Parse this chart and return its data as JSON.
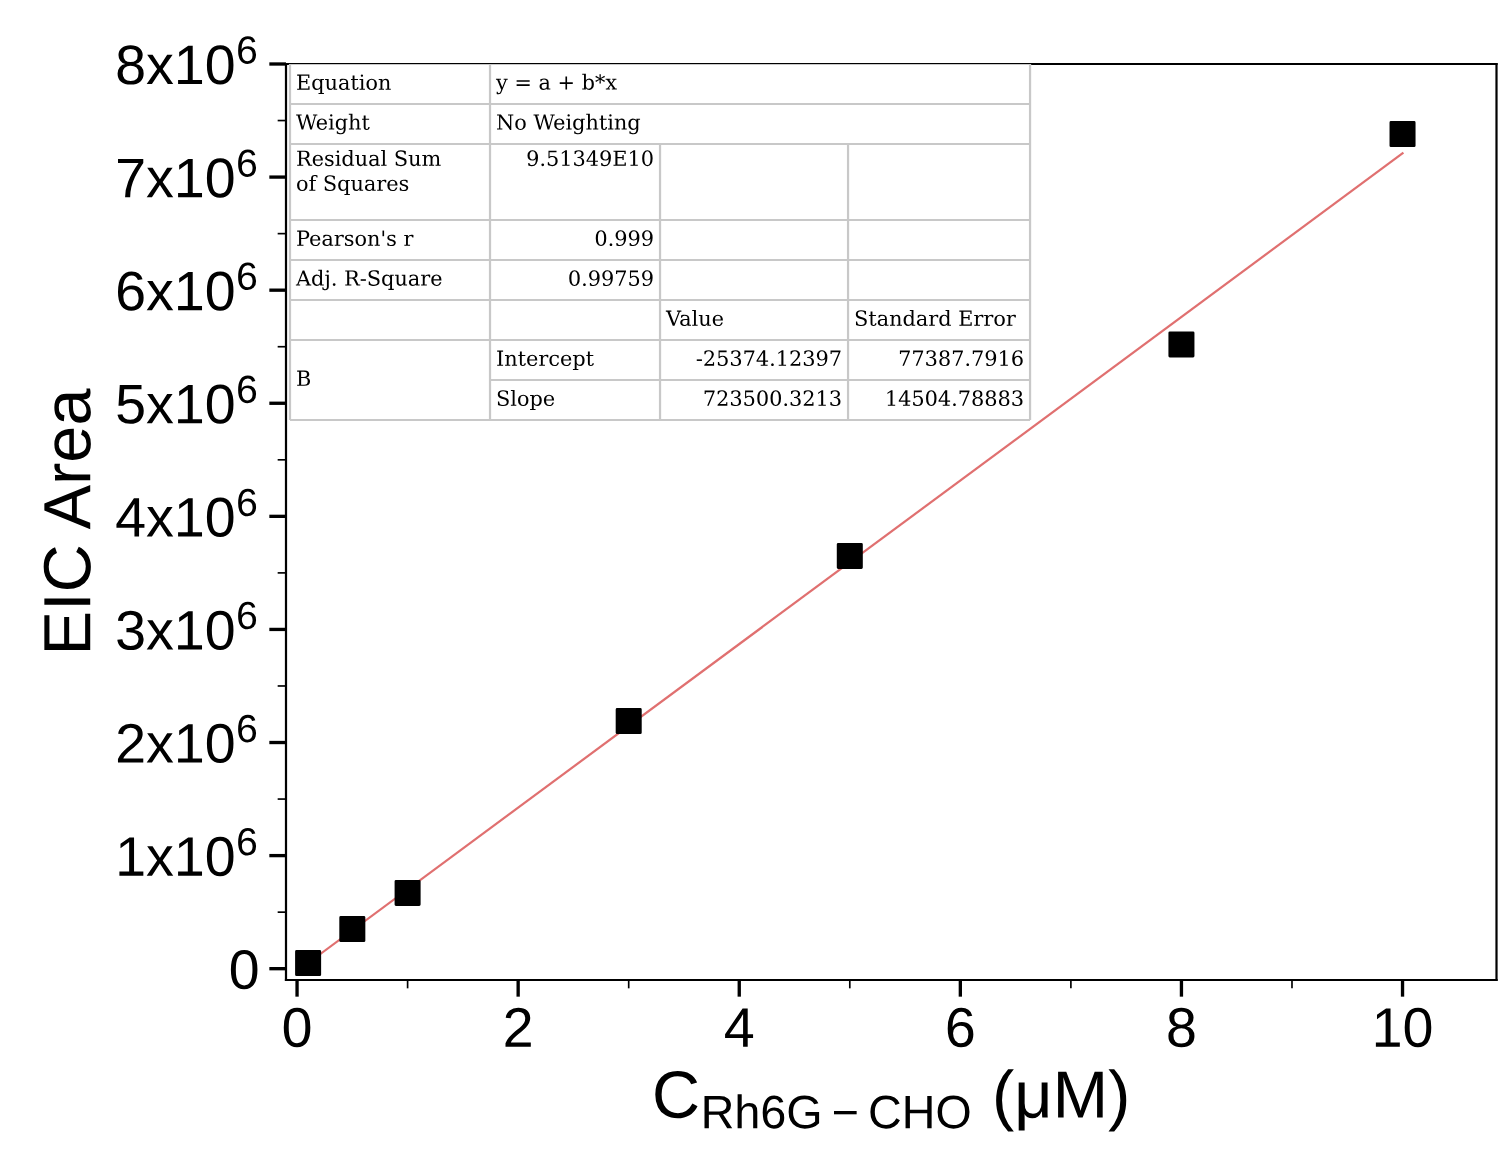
{
  "chart_data": {
    "type": "scatter",
    "xlabel": "C$_{Rh6G−CHO}$ (μM)",
    "ylabel": "EIC Area",
    "x": [
      0.1,
      0.5,
      1,
      3,
      5,
      8,
      10
    ],
    "series": [
      {
        "color": "#000000",
        "marker": "square",
        "values": [
          50000,
          350000,
          670000,
          2190000,
          3650000,
          5520000,
          7380000
        ]
      },
      {
        "type": "line",
        "color": "#e07070",
        "marker": "none",
        "line_style": "solid",
        "x": [
          0.1,
          10
        ],
        "values": [
          50000,
          7210000
        ]
      }
    ],
    "xlim": [
      -0.1,
      10.85
    ],
    "ylim": [
      -100000,
      8000000
    ],
    "xticks": [
      0,
      2,
      4,
      6,
      8,
      10
    ],
    "yticks": [
      {
        "value": 0,
        "label": "0"
      },
      {
        "value": 1000000,
        "label": "1x10$^{6}$"
      },
      {
        "value": 2000000,
        "label": "2x10$^{6}$"
      },
      {
        "value": 3000000,
        "label": "3x10$^{6}$"
      },
      {
        "value": 4000000,
        "label": "4x10$^{6}$"
      },
      {
        "value": 5000000,
        "label": "5x10$^{6}$"
      },
      {
        "value": 6000000,
        "label": "6x10$^{6}$"
      },
      {
        "value": 7000000,
        "label": "7x10$^{6}$"
      },
      {
        "value": 8000000,
        "label": "8x10$^{6}$"
      }
    ],
    "grid": false,
    "legend": false,
    "annotations": [
      "Equation",
      "y = a + b*x",
      "Weight",
      "No Weighting",
      "Residual Sum\nof Squares",
      "9.51349E10",
      "Pearson's r",
      "0.999",
      "Adj. R-Square",
      "0.99759",
      "Value",
      "Standard Error",
      "B",
      "Intercept",
      "-25374.12397",
      "77387.7916",
      "Slope",
      "723500.3213",
      "14504.78883"
    ]
  }
}
